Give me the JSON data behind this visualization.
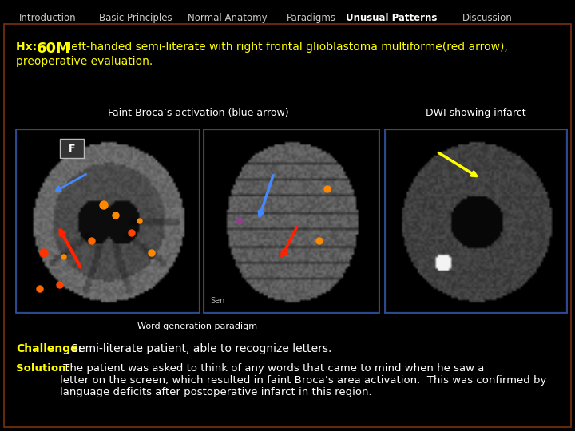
{
  "bg_color": "#000000",
  "nav_items": [
    "Introduction",
    "Basic Principles",
    "Normal Anatomy",
    "Paradigms",
    "Unusual Patterns",
    "Discussion"
  ],
  "nav_active": "Unusual Patterns",
  "nav_color": "#cccccc",
  "nav_active_color": "#ffffff",
  "nav_fontsize": 8.5,
  "main_border_color": "#7a3010",
  "hx_line1": "Hx: 60M left-handed semi-literate with right frontal glioblastoma multiforme(red arrow),",
  "hx_line2": "preoperative evaluation.",
  "hx_color": "#ffff00",
  "hx_60m_size": 13,
  "hx_fontsize": 10,
  "label_broca": "Faint Broca’s activation (blue arrow)",
  "label_dwi": "DWI showing infarct",
  "label_paradigm": "Word generation paradigm",
  "label_color": "#ffffff",
  "label_fontsize": 9,
  "challenge_label": "Challenge:",
  "challenge_text": " Semi-literate patient, able to recognize letters.",
  "challenge_color": "#ffff00",
  "challenge_text_color": "#ffffff",
  "challenge_fontsize": 10,
  "solution_label": "Solution:",
  "solution_text": " The patient was asked to think of any words that came to mind when he saw a\nletter on the screen, which resulted in faint Broca’s area activation.  This was confirmed by\nlanguage deficits after postoperative infarct in this region.",
  "solution_label_color": "#ffff00",
  "solution_text_color": "#ffffff",
  "solution_fontsize": 9.5
}
